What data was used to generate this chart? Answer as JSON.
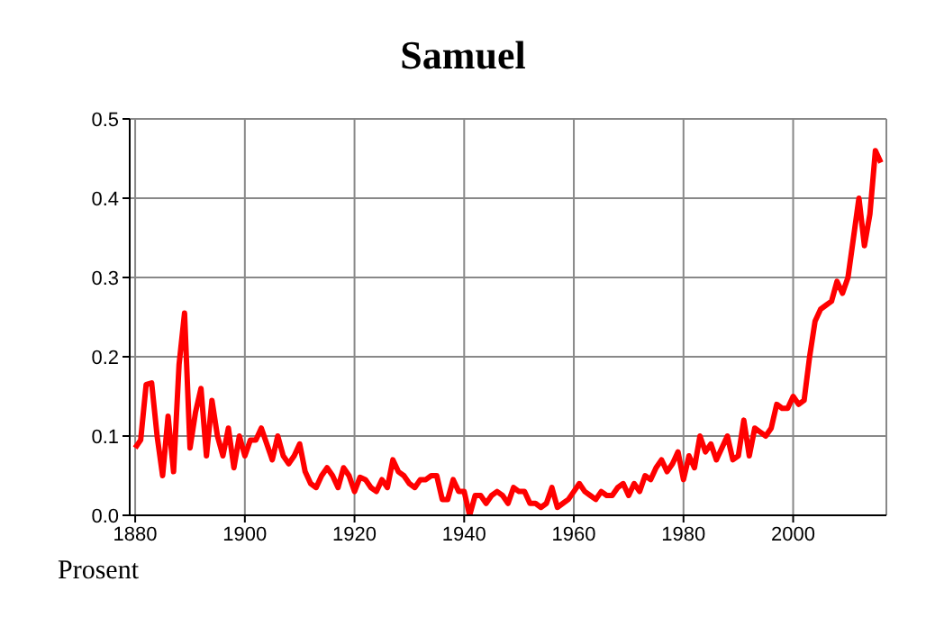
{
  "chart_data": {
    "type": "line",
    "title": "Samuel",
    "ylabel": "Prosent",
    "x": [
      1880,
      1881,
      1882,
      1883,
      1884,
      1885,
      1886,
      1887,
      1888,
      1889,
      1890,
      1891,
      1892,
      1893,
      1894,
      1895,
      1896,
      1897,
      1898,
      1899,
      1900,
      1901,
      1902,
      1903,
      1904,
      1905,
      1906,
      1907,
      1908,
      1909,
      1910,
      1911,
      1912,
      1913,
      1914,
      1915,
      1916,
      1917,
      1918,
      1919,
      1920,
      1921,
      1922,
      1923,
      1924,
      1925,
      1926,
      1927,
      1928,
      1929,
      1930,
      1931,
      1932,
      1933,
      1934,
      1935,
      1936,
      1937,
      1938,
      1939,
      1940,
      1941,
      1942,
      1943,
      1944,
      1945,
      1946,
      1947,
      1948,
      1949,
      1950,
      1951,
      1952,
      1953,
      1954,
      1955,
      1956,
      1957,
      1958,
      1959,
      1960,
      1961,
      1962,
      1963,
      1964,
      1965,
      1966,
      1967,
      1968,
      1969,
      1970,
      1971,
      1972,
      1973,
      1974,
      1975,
      1976,
      1977,
      1978,
      1979,
      1980,
      1981,
      1982,
      1983,
      1984,
      1985,
      1986,
      1987,
      1988,
      1989,
      1990,
      1991,
      1992,
      1993,
      1994,
      1995,
      1996,
      1997,
      1998,
      1999,
      2000,
      2001,
      2002,
      2003,
      2004,
      2005,
      2006,
      2007,
      2008,
      2009,
      2010,
      2011,
      2012,
      2013,
      2014,
      2015,
      2016
    ],
    "series": [
      {
        "color": "#ff0000",
        "values": [
          0.085,
          0.095,
          0.165,
          0.167,
          0.1,
          0.05,
          0.125,
          0.055,
          0.19,
          0.255,
          0.085,
          0.13,
          0.16,
          0.075,
          0.145,
          0.1,
          0.075,
          0.11,
          0.06,
          0.1,
          0.075,
          0.095,
          0.095,
          0.11,
          0.09,
          0.07,
          0.1,
          0.075,
          0.065,
          0.075,
          0.09,
          0.055,
          0.04,
          0.035,
          0.05,
          0.06,
          0.05,
          0.035,
          0.06,
          0.05,
          0.03,
          0.048,
          0.045,
          0.035,
          0.03,
          0.045,
          0.035,
          0.07,
          0.055,
          0.05,
          0.04,
          0.035,
          0.045,
          0.045,
          0.05,
          0.05,
          0.02,
          0.02,
          0.045,
          0.03,
          0.03,
          0.0,
          0.025,
          0.025,
          0.015,
          0.025,
          0.03,
          0.025,
          0.015,
          0.035,
          0.03,
          0.03,
          0.015,
          0.015,
          0.01,
          0.015,
          0.035,
          0.01,
          0.015,
          0.02,
          0.03,
          0.04,
          0.03,
          0.025,
          0.02,
          0.03,
          0.025,
          0.025,
          0.035,
          0.04,
          0.025,
          0.04,
          0.03,
          0.05,
          0.045,
          0.06,
          0.07,
          0.055,
          0.065,
          0.08,
          0.045,
          0.075,
          0.06,
          0.1,
          0.08,
          0.09,
          0.07,
          0.085,
          0.1,
          0.07,
          0.075,
          0.12,
          0.075,
          0.11,
          0.105,
          0.1,
          0.11,
          0.14,
          0.135,
          0.135,
          0.15,
          0.14,
          0.145,
          0.2,
          0.245,
          0.26,
          0.265,
          0.27,
          0.295,
          0.28,
          0.3,
          0.35,
          0.4,
          0.34,
          0.38,
          0.46,
          0.445
        ]
      }
    ],
    "xlim": [
      1879,
      2017
    ],
    "xticks": [
      1880,
      1900,
      1920,
      1940,
      1960,
      1980,
      2000
    ],
    "ylim": [
      0,
      0.5
    ],
    "yticks": [
      {
        "value": 0,
        "label": "0.0"
      },
      {
        "value": 0.1,
        "label": "0.1"
      },
      {
        "value": 0.2,
        "label": "0.2"
      },
      {
        "value": 0.3,
        "label": "0.3"
      },
      {
        "value": 0.4,
        "label": "0.4"
      },
      {
        "value": 0.5,
        "label": "0.5"
      }
    ],
    "grid": true,
    "legend": false,
    "marker": "none",
    "line_style": "solid"
  }
}
